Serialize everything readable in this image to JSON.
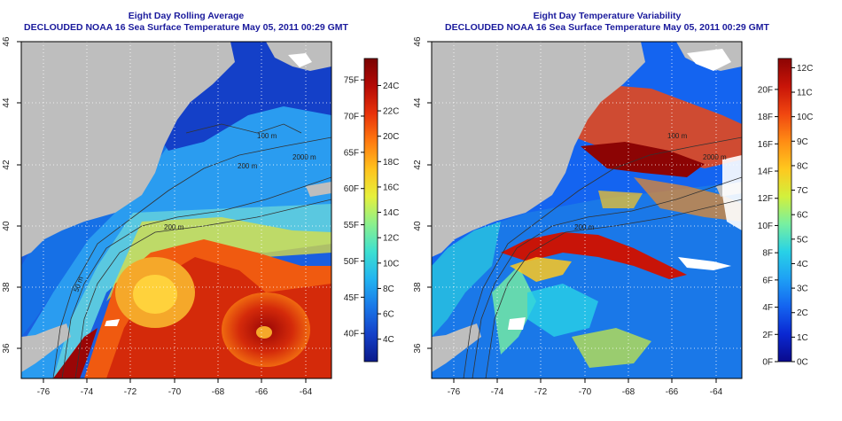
{
  "panels": [
    {
      "title_line1": "Eight Day Rolling Average",
      "title_line2": "DECLOUDED NOAA 16 Sea Surface Temperature May 05, 2011 00:29 GMT",
      "x_ticks": [
        "-76",
        "-74",
        "-72",
        "-70",
        "-68",
        "-66",
        "-64"
      ],
      "y_ticks": [
        "36",
        "38",
        "40",
        "42",
        "44",
        "46"
      ],
      "contour_labels": [
        "100 m",
        "200 m",
        "2000 m",
        "200 m",
        "50 m"
      ],
      "colorbar": {
        "left_ticks": [
          "40F",
          "45F",
          "50F",
          "55F",
          "60F",
          "65F",
          "70F",
          "75F"
        ],
        "right_ticks": [
          "4C",
          "6C",
          "8C",
          "10C",
          "12C",
          "14C",
          "16C",
          "18C",
          "20C",
          "22C",
          "24C"
        ],
        "colors": [
          "#0b1a8a",
          "#1440c8",
          "#1a78e8",
          "#22b4f0",
          "#3ee0d0",
          "#8cf08c",
          "#e6f03c",
          "#ffc21e",
          "#ff7a10",
          "#e8320a",
          "#b40a06",
          "#7a0202"
        ]
      }
    },
    {
      "title_line1": "Eight Day Temperature Variability",
      "title_line2": "DECLOUDED NOAA 16 Sea Surface Temperature May 05, 2011 00:29 GMT",
      "x_ticks": [
        "-76",
        "-74",
        "-72",
        "-70",
        "-68",
        "-66",
        "-64"
      ],
      "y_ticks": [
        "36",
        "38",
        "40",
        "42",
        "44",
        "46"
      ],
      "contour_labels": [
        "100 m",
        "200 m",
        "2000 m"
      ],
      "colorbar": {
        "left_ticks": [
          "0F",
          "2F",
          "4F",
          "6F",
          "8F",
          "10F",
          "12F",
          "14F",
          "16F",
          "18F",
          "20F"
        ],
        "right_ticks": [
          "0C",
          "1C",
          "2C",
          "3C",
          "4C",
          "5C",
          "6C",
          "7C",
          "8C",
          "9C",
          "10C",
          "11C",
          "12C"
        ],
        "colors": [
          "#0a0a8c",
          "#0a28d2",
          "#1464f0",
          "#1ea0f5",
          "#28d2e6",
          "#78f0a0",
          "#d2f03c",
          "#ffc81e",
          "#ff8c14",
          "#f04610",
          "#c81408",
          "#8c0404"
        ]
      }
    }
  ],
  "style": {
    "title_color": "#1a1a9c",
    "land_color": "#bebebe",
    "no_data_color": "#ffffff",
    "grid": "dotted white"
  }
}
